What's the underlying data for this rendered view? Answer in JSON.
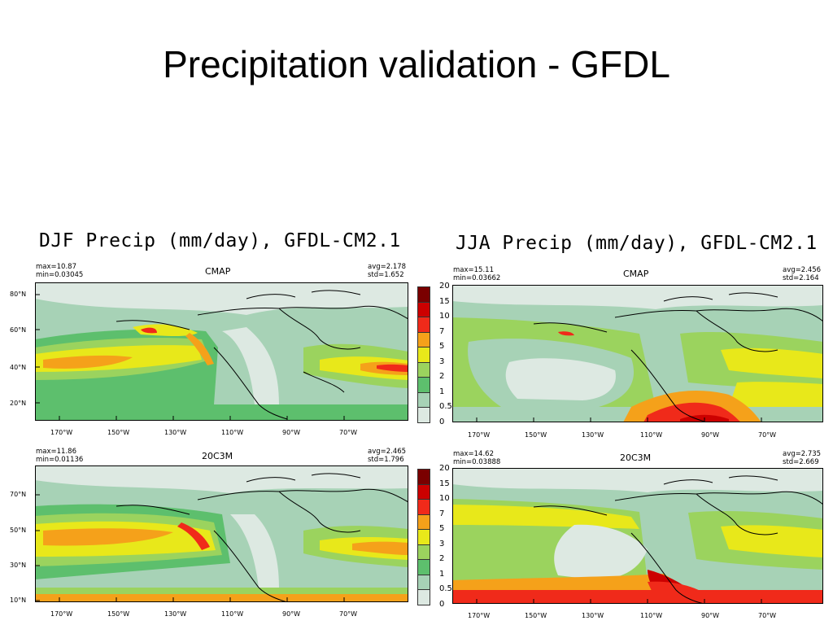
{
  "slide": {
    "title": "Precipitation validation - GFDL"
  },
  "colors": {
    "levels": [
      "#dde9e2",
      "#a7d2b6",
      "#5dbf6d",
      "#9bd35e",
      "#e8e81a",
      "#f5a11a",
      "#f02a1a",
      "#cc0000",
      "#7a0000"
    ],
    "land_bg": "#dcebe4",
    "coast": "#000000"
  },
  "colorbar": {
    "labels": [
      "20",
      "15",
      "10",
      "7",
      "5",
      "3",
      "2",
      "1",
      "0.5",
      "0"
    ]
  },
  "figures": [
    {
      "title": "DJF Precip (mm/day), GFDL-CM2.1",
      "panels": [
        {
          "name": "CMAP",
          "max": "max=10.87",
          "min": "min=0.03045",
          "avg": "avg=2.178",
          "std": "std=1.652",
          "lats": [
            "80°N",
            "60°N",
            "40°N",
            "20°N"
          ],
          "lons": [
            "170°W",
            "150°W",
            "130°W",
            "110°W",
            "90°W",
            "70°W"
          ]
        },
        {
          "name": "20C3M",
          "max": "max=11.86",
          "min": "min=0.01136",
          "avg": "avg=2.465",
          "std": "std=1.796",
          "lats": [
            "70°N",
            "50°N",
            "30°N",
            "10°N"
          ],
          "lons": [
            "170°W",
            "150°W",
            "130°W",
            "110°W",
            "90°W",
            "70°W"
          ]
        }
      ]
    },
    {
      "title": "JJA Precip (mm/day), GFDL-CM2.1",
      "panels": [
        {
          "name": "CMAP",
          "max": "max=15.11",
          "min": "min=0.03662",
          "avg": "avg=2.456",
          "std": "std=2.164",
          "lats": [],
          "lons": [
            "170°W",
            "150°W",
            "130°W",
            "110°W",
            "90°W",
            "70°W"
          ]
        },
        {
          "name": "20C3M",
          "max": "max=14.62",
          "min": "min=0.03888",
          "avg": "avg=2.735",
          "std": "std=2.669",
          "lats": [],
          "lons": [
            "170°W",
            "150°W",
            "130°W",
            "110°W",
            "90°W",
            "70°W"
          ]
        }
      ]
    }
  ]
}
